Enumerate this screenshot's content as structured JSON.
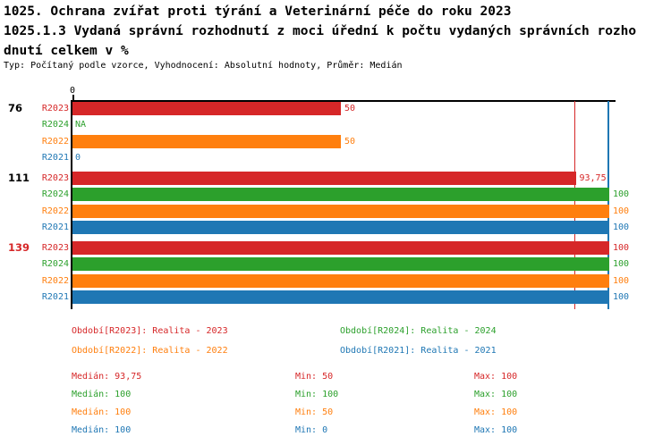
{
  "header": {
    "title_line1": "1025. Ochrana zvířat proti týrání a Veterinární péče do roku 2023",
    "title_line2": "1025.1.3 Vydaná správní rozhodnutí z moci úřední k počtu vydaných správních rozho",
    "title_line3": "dnutí celkem v %",
    "subtitle": "Typ: Počítaný podle vzorce, Vyhodnocení: Absolutní hodnoty, Průměr: Medián"
  },
  "colors": {
    "red": "#d62728",
    "green": "#2ca02c",
    "orange": "#ff7f0e",
    "blue": "#1f77b4",
    "black": "#000000"
  },
  "axis": {
    "zero_label": "0"
  },
  "chart_data": {
    "type": "bar",
    "orientation": "horizontal",
    "xlim": [
      0,
      100
    ],
    "series_labels": [
      "R2023",
      "R2024",
      "R2022",
      "R2021"
    ],
    "groups": [
      {
        "id": "76",
        "id_color": "black",
        "bars": [
          {
            "series": "R2023",
            "color": "red",
            "value": 50,
            "label": "50"
          },
          {
            "series": "R2024",
            "color": "green",
            "value": null,
            "label": "NA"
          },
          {
            "series": "R2022",
            "color": "orange",
            "value": 50,
            "label": "50"
          },
          {
            "series": "R2021",
            "color": "blue",
            "value": 0,
            "label": "0"
          }
        ]
      },
      {
        "id": "111",
        "id_color": "black",
        "bars": [
          {
            "series": "R2023",
            "color": "red",
            "value": 93.75,
            "label": "93,75"
          },
          {
            "series": "R2024",
            "color": "green",
            "value": 100,
            "label": "100"
          },
          {
            "series": "R2022",
            "color": "orange",
            "value": 100,
            "label": "100"
          },
          {
            "series": "R2021",
            "color": "blue",
            "value": 100,
            "label": "100"
          }
        ]
      },
      {
        "id": "139",
        "id_color": "red",
        "bars": [
          {
            "series": "R2023",
            "color": "red",
            "value": 100,
            "label": "100"
          },
          {
            "series": "R2024",
            "color": "green",
            "value": 100,
            "label": "100"
          },
          {
            "series": "R2022",
            "color": "orange",
            "value": 100,
            "label": "100"
          },
          {
            "series": "R2021",
            "color": "blue",
            "value": 100,
            "label": "100"
          }
        ]
      }
    ],
    "reference_lines": [
      {
        "value": 93.75,
        "color": "red"
      },
      {
        "value": 100,
        "color": "blue"
      }
    ]
  },
  "legend": [
    {
      "label": "Období[R2023]: Realita - 2023",
      "color": "red"
    },
    {
      "label": "Období[R2024]: Realita - 2024",
      "color": "green"
    },
    {
      "label": "Období[R2022]: Realita - 2022",
      "color": "orange"
    },
    {
      "label": "Období[R2021]: Realita - 2021",
      "color": "blue"
    }
  ],
  "stats": {
    "median_label": "Medián:",
    "min_label": "Min:",
    "max_label": "Max:",
    "rows": [
      {
        "color": "red",
        "median": "93,75",
        "min": "50",
        "max": "100"
      },
      {
        "color": "green",
        "median": "100",
        "min": "100",
        "max": "100"
      },
      {
        "color": "orange",
        "median": "100",
        "min": "50",
        "max": "100"
      },
      {
        "color": "blue",
        "median": "100",
        "min": "0",
        "max": "100"
      }
    ]
  }
}
